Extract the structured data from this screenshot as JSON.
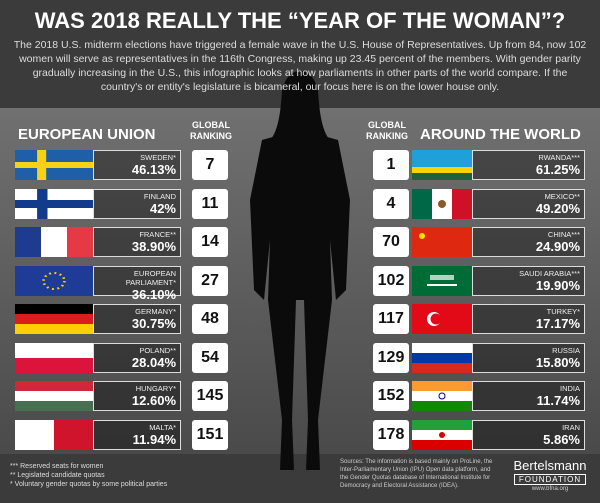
{
  "title": "WAS 2018 REALLY THE “YEAR OF THE WOMAN”?",
  "intro": "The 2018 U.S. midterm elections have triggered a female wave in the U.S. House of Representatives. Up from 84, now 102 women will serve as representatives in the 116th Congress, making up 23.45 percent of the members. With gender parity gradually increasing in the U.S., this infographic looks at how parliaments in other parts of the world compare. If the country's or entity's legislature is bicameral, our focus here is on the lower house only.",
  "left": {
    "heading": "EUROPEAN UNION",
    "ranking_heading": "GLOBAL RANKING",
    "rows": [
      {
        "name": "SWEDEN*",
        "share": "46.13%",
        "rank": "7"
      },
      {
        "name": "FINLAND",
        "share": "42%",
        "rank": "11"
      },
      {
        "name": "FRANCE**",
        "share": "38.90%",
        "rank": "14"
      },
      {
        "name": "EUROPEAN PARLIAMENT*",
        "share": "36.10%",
        "rank": "27"
      },
      {
        "name": "GERMANY*",
        "share": "30.75%",
        "rank": "48"
      },
      {
        "name": "POLAND**",
        "share": "28.04%",
        "rank": "54"
      },
      {
        "name": "HUNGARY*",
        "share": "12.60%",
        "rank": "145"
      },
      {
        "name": "MALTA*",
        "share": "11.94%",
        "rank": "151"
      }
    ]
  },
  "right": {
    "heading": "AROUND THE WORLD",
    "ranking_heading": "GLOBAL RANKING",
    "rows": [
      {
        "name": "RWANDA***",
        "share": "61.25%",
        "rank": "1"
      },
      {
        "name": "MEXICO**",
        "share": "49.20%",
        "rank": "4"
      },
      {
        "name": "CHINA***",
        "share": "24.90%",
        "rank": "70"
      },
      {
        "name": "SAUDI ARABIA***",
        "share": "19.90%",
        "rank": "102"
      },
      {
        "name": "TURKEY*",
        "share": "17.17%",
        "rank": "117"
      },
      {
        "name": "RUSSIA",
        "share": "15.80%",
        "rank": "129"
      },
      {
        "name": "INDIA",
        "share": "11.74%",
        "rank": "152"
      },
      {
        "name": "IRAN",
        "share": "5.86%",
        "rank": "178"
      }
    ]
  },
  "footnotes": [
    "*** Reserved seats for women",
    "** Legislated candidate quotas",
    "* Voluntary gender quotas by some political parties"
  ],
  "sources": "Sources: The information is based mainly on ProLine, the Inter-Parliamentary Union (IPU) Open data platform, and the Gender Quotas database of International Institute for Democracy and Electoral Assistance (IDEA).",
  "logo": {
    "name": "Bertelsmann",
    "sub": "FOUNDATION",
    "url": "www.bfna.org"
  }
}
